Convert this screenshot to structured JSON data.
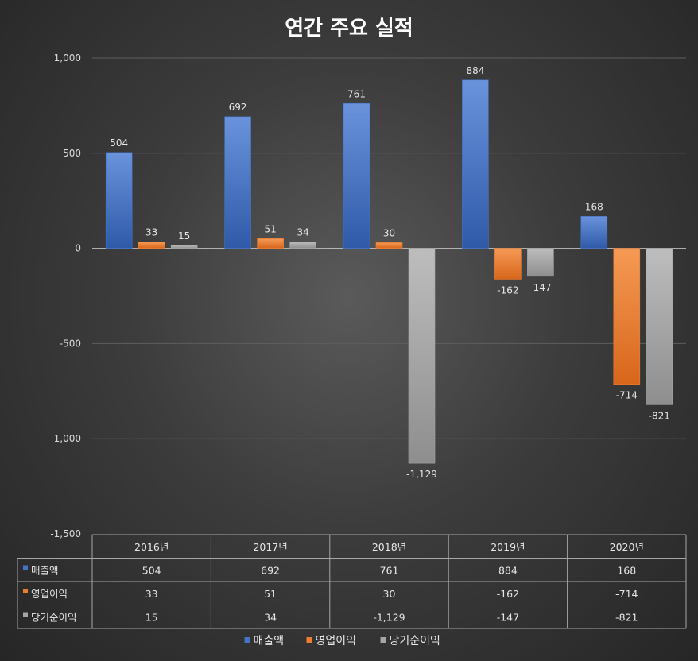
{
  "chart_data": {
    "type": "bar",
    "title": "연간 주요 실적",
    "categories": [
      "2016년",
      "2017년",
      "2018년",
      "2019년",
      "2020년"
    ],
    "series": [
      {
        "name": "매출액",
        "color": "#4472c4",
        "values": [
          504,
          692,
          761,
          884,
          168
        ]
      },
      {
        "name": "영업이익",
        "color": "#ed7d31",
        "values": [
          33,
          51,
          30,
          -162,
          -714
        ]
      },
      {
        "name": "당기순이익",
        "color": "#a5a5a5",
        "values": [
          15,
          34,
          -1129,
          -147,
          -821
        ]
      }
    ],
    "ylim": [
      -1500,
      1000
    ],
    "yticks": [
      1000,
      500,
      0,
      -500,
      -1000,
      -1500
    ],
    "ytick_labels": [
      "1,000",
      "500",
      "0",
      "-500",
      "-1,000",
      "-1,500"
    ],
    "data_labels": [
      [
        "504",
        "692",
        "761",
        "884",
        "168"
      ],
      [
        "33",
        "51",
        "30",
        "-162",
        "-714"
      ],
      [
        "15",
        "34",
        "-1,129",
        "-147",
        "-821"
      ]
    ],
    "data_table": true,
    "legend": "bottom",
    "grid": true
  }
}
